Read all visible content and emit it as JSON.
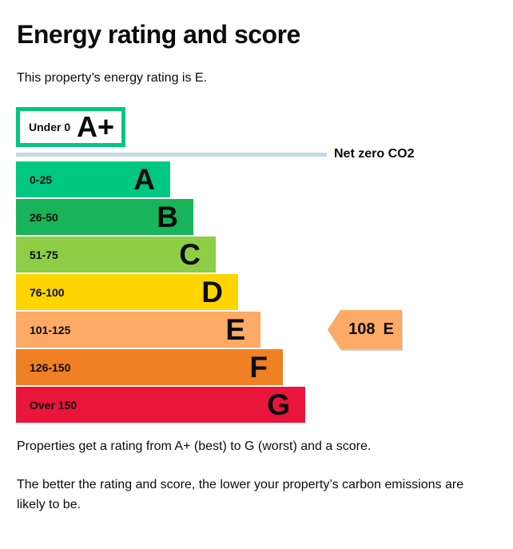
{
  "header": {
    "title": "Energy rating and score",
    "subtitle": "This property’s energy rating is E."
  },
  "chart_data": {
    "type": "bar",
    "orientation": "horizontal",
    "title": "Energy rating and score",
    "net_zero_label": "Net zero CO2",
    "net_zero_line_color": "#c3dbe4",
    "bands": [
      {
        "range": "Under 0",
        "letter": "A+",
        "color": "#ffffff",
        "border_color": "#00c781"
      },
      {
        "range": "0-25",
        "letter": "A",
        "color": "#00c781"
      },
      {
        "range": "26-50",
        "letter": "B",
        "color": "#19b459"
      },
      {
        "range": "51-75",
        "letter": "C",
        "color": "#8dce46"
      },
      {
        "range": "76-100",
        "letter": "D",
        "color": "#ffd500"
      },
      {
        "range": "101-125",
        "letter": "E",
        "color": "#fcaa65"
      },
      {
        "range": "126-150",
        "letter": "F",
        "color": "#ef8023"
      },
      {
        "range": "Over 150",
        "letter": "G",
        "color": "#e9153b"
      }
    ],
    "current_rating": {
      "score": "108",
      "letter": "E",
      "marker_color": "#fcaa65"
    }
  },
  "footer": {
    "note1": "Properties get a rating from A+ (best) to G (worst) and a score.",
    "note2": "The better the rating and score, the lower your property’s carbon emissions are likely to be."
  }
}
